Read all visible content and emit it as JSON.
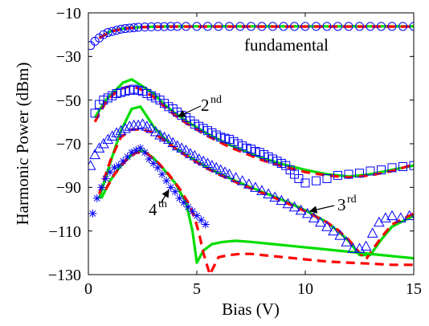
{
  "chart_data": {
    "type": "line",
    "xlabel": "Bias (V)",
    "ylabel": "Harmonic Power (dBm)",
    "xlim": [
      0,
      15
    ],
    "ylim": [
      -130,
      -10
    ],
    "xticks": [
      0,
      5,
      10,
      15
    ],
    "yticks": [
      -10,
      -30,
      -50,
      -70,
      -90,
      -110,
      -130
    ],
    "grid": false,
    "colors": {
      "measured": "#0000ff",
      "fit": "#ff0000",
      "model": "#00dd00"
    },
    "annotations": [
      {
        "text": "fundamental",
        "sup": "",
        "x": 7.2,
        "y": -28.8
      },
      {
        "text": "2",
        "sup": "nd",
        "x": 5.0,
        "y": -57.6,
        "arrow_to": [
          4.0,
          -62.5
        ]
      },
      {
        "text": "3",
        "sup": "rd",
        "x": 11.5,
        "y": -101.8,
        "arrow_to": [
          10.5,
          -104.5
        ]
      },
      {
        "text": "4",
        "sup": "th",
        "x": 3.2,
        "y": -102.6,
        "arrow_to": [
          3.75,
          -93.5
        ]
      }
    ],
    "series": [
      {
        "harmonic": "fundamental-circles",
        "marker": "circle",
        "color": "#0000ff",
        "x": [
          0.1,
          0.3,
          0.5,
          0.7,
          0.9,
          1.1,
          1.3,
          1.5,
          1.7,
          1.9,
          2.1,
          2.3,
          2.6,
          2.9,
          3.2,
          3.5,
          3.8,
          4.1,
          4.5,
          5,
          5.5,
          6,
          6.5,
          7,
          7.5,
          8,
          8.5,
          9,
          9.5,
          10,
          10.5,
          11,
          11.5,
          12,
          12.5,
          13,
          13.5,
          14,
          14.5,
          15
        ],
        "y": [
          -25,
          -23,
          -21.5,
          -20,
          -19,
          -18.5,
          -18,
          -17.5,
          -17.2,
          -17,
          -16.8,
          -16.6,
          -16.5,
          -16.4,
          -16.3,
          -16.3,
          -16.2,
          -16.2,
          -16.2,
          -16.2,
          -16.2,
          -16.2,
          -16.2,
          -16.2,
          -16.2,
          -16.2,
          -16.2,
          -16.2,
          -16.2,
          -16.2,
          -16.2,
          -16.2,
          -16.2,
          -16.2,
          -16.2,
          -16.2,
          -16.2,
          -16.2,
          -16.2,
          -16.2
        ]
      },
      {
        "harmonic": "fundamental-green",
        "marker": "none",
        "color": "#00dd00",
        "x": [
          0.5,
          1,
          1.5,
          2,
          2.5,
          3,
          4,
          5,
          6,
          8,
          10,
          12,
          14,
          15
        ],
        "y": [
          -21.5,
          -18.5,
          -17.4,
          -16.8,
          -16.5,
          -16.3,
          -16.2,
          -16.2,
          -16.2,
          -16.2,
          -16.2,
          -16.2,
          -16.2,
          -16.2
        ]
      },
      {
        "harmonic": "fundamental-red",
        "marker": "none",
        "color": "#ff0000",
        "x": [
          0.5,
          1,
          1.5,
          2,
          2.5,
          3,
          4,
          5,
          6,
          8,
          10,
          12,
          14,
          15
        ],
        "y": [
          -21.6,
          -18.6,
          -17.5,
          -16.9,
          -16.6,
          -16.4,
          -16.3,
          -16.3,
          -16.3,
          -16.3,
          -16.3,
          -16.3,
          -16.3,
          -16.3
        ]
      },
      {
        "harmonic": "2nd-squares",
        "marker": "square",
        "color": "#0000ff",
        "x": [
          0.3,
          0.5,
          0.7,
          0.9,
          1.1,
          1.3,
          1.5,
          1.7,
          1.9,
          2.1,
          2.3,
          2.5,
          2.7,
          2.9,
          3.1,
          3.3,
          3.5,
          3.7,
          3.9,
          4.1,
          4.3,
          4.5,
          4.7,
          4.9,
          5.1,
          5.3,
          5.5,
          5.7,
          5.9,
          6.1,
          6.3,
          6.5,
          6.7,
          6.9,
          7.1,
          7.3,
          7.5,
          7.7,
          7.9,
          8.1,
          8.3,
          8.5,
          8.7,
          8.9,
          9.1,
          9.3,
          9.5,
          9.7,
          10,
          10.5,
          11,
          11.5,
          12,
          12.5,
          13,
          13.5,
          14,
          14.5,
          15
        ],
        "y": [
          -56,
          -52,
          -50,
          -49,
          -48,
          -47,
          -46.5,
          -46,
          -45.5,
          -45,
          -45.5,
          -46,
          -47,
          -48,
          -49,
          -50,
          -51.5,
          -53,
          -54,
          -55.5,
          -57,
          -58,
          -59.5,
          -61,
          -62,
          -63,
          -64,
          -65,
          -66,
          -67,
          -67.5,
          -68,
          -69,
          -70,
          -71,
          -72,
          -72.5,
          -73.5,
          -74,
          -75,
          -76,
          -77,
          -78,
          -79,
          -80,
          -82,
          -84,
          -86,
          -88,
          -87,
          -86,
          -84.5,
          -84,
          -83.5,
          -82.5,
          -82,
          -81,
          -80.5,
          -80
        ]
      },
      {
        "harmonic": "2nd-green",
        "marker": "none",
        "color": "#00dd00",
        "x": [
          0.3,
          0.8,
          1.2,
          1.6,
          2,
          2.4,
          3,
          3.5,
          4,
          4.5,
          5,
          5.5,
          6,
          6.5,
          7,
          8,
          9,
          10,
          11,
          12,
          13,
          14,
          15
        ],
        "y": [
          -58,
          -50,
          -46,
          -42,
          -40.5,
          -43,
          -47,
          -52,
          -56,
          -59.5,
          -62.5,
          -65.5,
          -68,
          -70.5,
          -72.5,
          -76.5,
          -79.5,
          -82,
          -84,
          -85,
          -84,
          -82,
          -80
        ]
      },
      {
        "harmonic": "2nd-red",
        "marker": "none",
        "color": "#ff0000",
        "x": [
          0.3,
          0.8,
          1.2,
          1.6,
          2,
          2.4,
          3,
          3.5,
          4,
          4.5,
          5,
          5.5,
          6,
          6.5,
          7,
          8,
          9,
          10,
          11,
          12,
          13,
          14,
          15
        ],
        "y": [
          -60,
          -51,
          -47,
          -44.5,
          -43.5,
          -45,
          -48.5,
          -53,
          -57,
          -60.5,
          -63.5,
          -66.5,
          -69,
          -71.5,
          -73.5,
          -77.5,
          -80.5,
          -83,
          -84.5,
          -85.5,
          -84.5,
          -82.5,
          -79.5
        ]
      },
      {
        "harmonic": "3rd-triangles",
        "marker": "triangle",
        "color": "#0000ff",
        "x": [
          0.1,
          0.3,
          0.5,
          0.7,
          0.9,
          1.1,
          1.3,
          1.5,
          1.7,
          1.9,
          2.1,
          2.3,
          2.5,
          2.7,
          2.9,
          3.1,
          3.3,
          3.5,
          3.7,
          3.9,
          4.1,
          4.3,
          4.5,
          4.7,
          4.9,
          5.1,
          5.3,
          5.5,
          5.7,
          5.9,
          6.1,
          6.3,
          6.5,
          6.8,
          7.1,
          7.4,
          7.7,
          8,
          8.3,
          8.6,
          8.9,
          9.2,
          9.5,
          9.8,
          10.1,
          10.4,
          10.7,
          11,
          11.3,
          11.6,
          11.9,
          12.2,
          12.5,
          12.8,
          13.1,
          13.4,
          13.7,
          14,
          14.4,
          14.8
        ],
        "y": [
          -80,
          -75,
          -72,
          -70,
          -68,
          -66.5,
          -65,
          -64,
          -63,
          -62,
          -61.5,
          -61.5,
          -61,
          -62,
          -63,
          -64.5,
          -66,
          -67,
          -68,
          -69.5,
          -71,
          -72,
          -73,
          -74.5,
          -75.5,
          -77,
          -78,
          -79,
          -80,
          -81,
          -82,
          -83,
          -84,
          -85.5,
          -87,
          -88.5,
          -90,
          -91.5,
          -93,
          -94.5,
          -96,
          -97.5,
          -99,
          -100.5,
          -102,
          -104,
          -106,
          -108,
          -110,
          -112,
          -115,
          -118,
          -118,
          -117,
          -111,
          -106,
          -104,
          -103,
          -104,
          -103
        ]
      },
      {
        "harmonic": "3rd-green",
        "marker": "none",
        "color": "#00dd00",
        "x": [
          0.5,
          1,
          1.5,
          2,
          2.4,
          3,
          3.5,
          4,
          4.5,
          5,
          5.5,
          6,
          7,
          8,
          9,
          10,
          11,
          11.5,
          12,
          12.5,
          13,
          13.5,
          14,
          15
        ],
        "y": [
          -95,
          -79,
          -64,
          -54,
          -53,
          -62,
          -67.5,
          -72,
          -75,
          -78,
          -81,
          -83.5,
          -88,
          -92,
          -96,
          -100.5,
          -106,
          -110,
          -114.5,
          -121,
          -121,
          -114,
          -108,
          -103
        ]
      },
      {
        "harmonic": "3rd-red",
        "marker": "none",
        "color": "#ff0000",
        "x": [
          0.5,
          1,
          1.5,
          2,
          2.5,
          3,
          3.5,
          4,
          4.5,
          5,
          5.5,
          6,
          7,
          8,
          9,
          10,
          11,
          11.5,
          12,
          12.5,
          12.8,
          13,
          13.5,
          14,
          15
        ],
        "y": [
          -93,
          -78,
          -67,
          -63.5,
          -63.5,
          -65,
          -68.5,
          -72,
          -75.5,
          -78.5,
          -81.5,
          -84,
          -88.5,
          -92.5,
          -96.5,
          -101,
          -106,
          -109.5,
          -114,
          -120,
          -123,
          -120,
          -113,
          -107,
          -102
        ]
      },
      {
        "harmonic": "4th-stars",
        "marker": "star",
        "color": "#0000ff",
        "x": [
          0.2,
          0.4,
          0.6,
          0.8,
          1,
          1.2,
          1.4,
          1.6,
          1.8,
          2,
          2.2,
          2.4,
          2.6,
          2.8,
          3,
          3.2,
          3.4,
          3.6,
          3.8,
          4,
          4.2,
          4.4,
          4.6,
          4.8,
          5,
          5.2,
          5.4
        ],
        "y": [
          -102,
          -95,
          -90,
          -86,
          -83,
          -81,
          -80,
          -78,
          -76,
          -74,
          -73,
          -72,
          -74,
          -77,
          -79,
          -81,
          -84,
          -87,
          -90,
          -92,
          -95,
          -97,
          -99,
          -101,
          -103,
          -105,
          -107
        ]
      },
      {
        "harmonic": "4th-green",
        "marker": "none",
        "color": "#00dd00",
        "x": [
          0.6,
          1,
          1.5,
          2,
          2.5,
          3,
          3.5,
          4,
          4.5,
          4.8,
          5,
          5.3,
          5.7,
          6.2,
          6.8,
          7.5,
          8.5,
          9.5,
          10.5,
          11.5,
          12.5,
          13.5,
          14.5,
          15
        ],
        "y": [
          -95,
          -87,
          -80,
          -75,
          -73,
          -76.5,
          -82,
          -88,
          -97,
          -110,
          -124.5,
          -119,
          -116,
          -115,
          -114.5,
          -115,
          -116,
          -117,
          -118,
          -119,
          -120,
          -121,
          -122,
          -122.5
        ]
      },
      {
        "harmonic": "4th-red",
        "marker": "none",
        "color": "#ff0000",
        "x": [
          0.8,
          1.2,
          1.7,
          2.2,
          2.7,
          3.2,
          3.7,
          4.2,
          4.6,
          4.9,
          5.1,
          5.3,
          5.6,
          6,
          6.5,
          7,
          7.5,
          8,
          9,
          10,
          11,
          12,
          13,
          14,
          15
        ],
        "y": [
          -91,
          -84,
          -78,
          -74,
          -74.5,
          -78.5,
          -84,
          -90.5,
          -97,
          -104,
          -111,
          -120,
          -130,
          -122,
          -121,
          -120.5,
          -120.5,
          -121,
          -122,
          -123,
          -124,
          -124.5,
          -125,
          -125.5,
          -125.5
        ]
      }
    ]
  },
  "labels": {
    "xlabel": "Bias (V)",
    "ylabel": "Harmonic Power (dBm)",
    "xticks": [
      "0",
      "5",
      "10",
      "15"
    ],
    "yticks": [
      "−10",
      "−30",
      "−50",
      "−70",
      "−90",
      "−110",
      "−130"
    ],
    "ann_fundamental": "fundamental",
    "ann_2": "2",
    "ann_2_sup": "nd",
    "ann_3": "3",
    "ann_3_sup": "rd",
    "ann_4": "4",
    "ann_4_sup": "th"
  }
}
